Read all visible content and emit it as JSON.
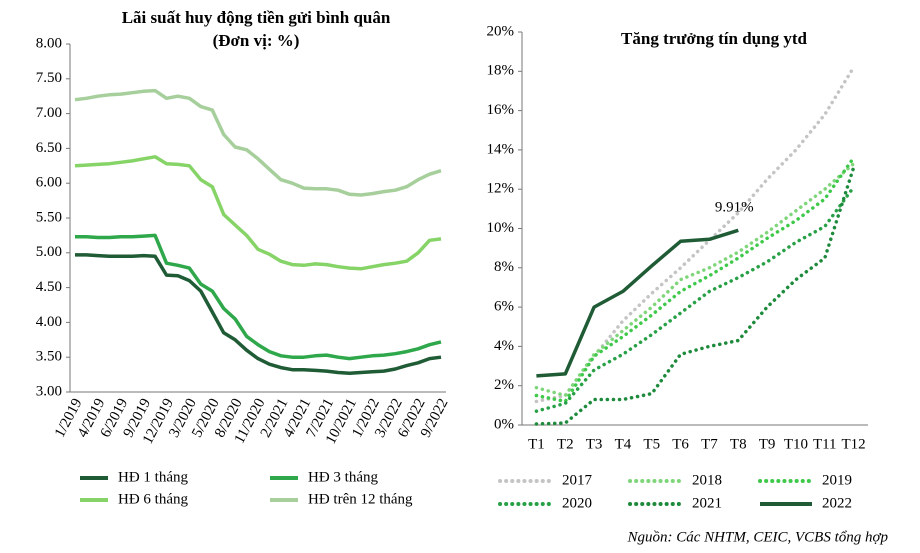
{
  "chart_data": [
    {
      "type": "line",
      "title": "Lãi suất huy động tiền gửi bình quân",
      "subtitle": "(Đơn vị: %)",
      "categories": [
        "1/2019",
        null,
        "4/2019",
        null,
        "6/2019",
        null,
        "9/2019",
        null,
        "12/2019",
        null,
        "3/2020",
        null,
        "5/2020",
        null,
        "8/2020",
        null,
        "11/2020",
        null,
        "2/2021",
        null,
        "4/2021",
        null,
        "7/2021",
        null,
        "10/2021",
        null,
        "1/2022",
        null,
        "3/2022",
        null,
        "6/2022",
        null,
        "9/2022"
      ],
      "ylim": [
        3,
        8
      ],
      "yticks": [
        {
          "value": 3,
          "label": "3.00"
        },
        {
          "value": 3.5,
          "label": "3.50"
        },
        {
          "value": 4,
          "label": "4.00"
        },
        {
          "value": 4.5,
          "label": "4.50"
        },
        {
          "value": 5,
          "label": "5.00"
        },
        {
          "value": 5.5,
          "label": "5.50"
        },
        {
          "value": 6,
          "label": "6.00"
        },
        {
          "value": 6.5,
          "label": "6.50"
        },
        {
          "value": 7,
          "label": "7.00"
        },
        {
          "value": 7.5,
          "label": "7.50"
        },
        {
          "value": 8,
          "label": "8.00"
        }
      ],
      "legend": "bottom",
      "series": [
        {
          "name": "HĐ 1 tháng",
          "color": "#1f5c36",
          "style": "solid",
          "values": [
            4.97,
            4.97,
            4.96,
            4.95,
            4.95,
            4.95,
            4.96,
            4.95,
            4.68,
            4.67,
            4.6,
            4.45,
            4.15,
            3.85,
            3.75,
            3.6,
            3.48,
            3.4,
            3.35,
            3.32,
            3.32,
            3.31,
            3.3,
            3.28,
            3.27,
            3.28,
            3.29,
            3.3,
            3.33,
            3.38,
            3.42,
            3.48,
            3.5
          ]
        },
        {
          "name": "HĐ 3 tháng",
          "color": "#2ea84a",
          "style": "solid",
          "values": [
            5.23,
            5.23,
            5.22,
            5.22,
            5.23,
            5.23,
            5.24,
            5.25,
            4.85,
            4.82,
            4.78,
            4.55,
            4.45,
            4.2,
            4.05,
            3.8,
            3.68,
            3.58,
            3.52,
            3.5,
            3.5,
            3.52,
            3.53,
            3.5,
            3.48,
            3.5,
            3.52,
            3.53,
            3.55,
            3.58,
            3.62,
            3.68,
            3.72
          ]
        },
        {
          "name": "HĐ 6 tháng",
          "color": "#86d468",
          "style": "solid",
          "values": [
            6.25,
            6.26,
            6.27,
            6.28,
            6.3,
            6.32,
            6.35,
            6.38,
            6.28,
            6.27,
            6.25,
            6.05,
            5.95,
            5.55,
            5.4,
            5.25,
            5.05,
            4.98,
            4.88,
            4.83,
            4.82,
            4.84,
            4.83,
            4.8,
            4.78,
            4.77,
            4.8,
            4.83,
            4.85,
            4.88,
            5.0,
            5.18,
            5.2
          ]
        },
        {
          "name": "HĐ trên 12 tháng",
          "color": "#a6cf9c",
          "style": "solid",
          "values": [
            7.2,
            7.22,
            7.25,
            7.27,
            7.28,
            7.3,
            7.32,
            7.33,
            7.22,
            7.25,
            7.22,
            7.1,
            7.05,
            6.7,
            6.52,
            6.48,
            6.35,
            6.2,
            6.05,
            6.0,
            5.93,
            5.92,
            5.92,
            5.9,
            5.84,
            5.83,
            5.85,
            5.88,
            5.9,
            5.95,
            6.05,
            6.13,
            6.18
          ]
        }
      ]
    },
    {
      "type": "line",
      "title": "Tăng trưởng tín dụng ytd",
      "categories": [
        "T1",
        "T2",
        "T3",
        "T4",
        "T5",
        "T6",
        "T7",
        "T8",
        "T9",
        "T10",
        "T11",
        "T12"
      ],
      "ylim": [
        0,
        20
      ],
      "yticks": [
        {
          "value": 0,
          "label": "0%"
        },
        {
          "value": 2,
          "label": "2%"
        },
        {
          "value": 4,
          "label": "4%"
        },
        {
          "value": 6,
          "label": "6%"
        },
        {
          "value": 8,
          "label": "8%"
        },
        {
          "value": 10,
          "label": "10%"
        },
        {
          "value": 12,
          "label": "12%"
        },
        {
          "value": 14,
          "label": "14%"
        },
        {
          "value": 16,
          "label": "16%"
        },
        {
          "value": 18,
          "label": "18%"
        },
        {
          "value": 20,
          "label": "20%"
        }
      ],
      "legend": "bottom",
      "series": [
        {
          "name": "2017",
          "color": "#c4c4c4",
          "style": "dotted",
          "values": [
            1.2,
            1.5,
            3.5,
            5.3,
            6.7,
            8.0,
            9.4,
            10.8,
            12.5,
            14.0,
            15.8,
            18.2
          ]
        },
        {
          "name": "2018",
          "color": "#7fd67a",
          "style": "dotted",
          "values": [
            1.9,
            1.5,
            3.6,
            4.8,
            6.0,
            7.4,
            8.0,
            8.8,
            9.8,
            10.9,
            12.0,
            13.3
          ]
        },
        {
          "name": "2019",
          "color": "#3fc94a",
          "style": "dotted",
          "values": [
            1.5,
            1.2,
            3.5,
            4.5,
            5.6,
            6.8,
            7.6,
            8.5,
            9.5,
            10.4,
            11.5,
            13.6
          ]
        },
        {
          "name": "2020",
          "color": "#27a046",
          "style": "dotted",
          "values": [
            0.7,
            1.1,
            2.8,
            3.6,
            4.6,
            5.7,
            6.8,
            7.5,
            8.3,
            9.3,
            10.1,
            12.1
          ]
        },
        {
          "name": "2021",
          "color": "#1d8a3c",
          "style": "dotted",
          "values": [
            0.05,
            0.1,
            1.3,
            1.3,
            1.6,
            3.6,
            4.0,
            4.3,
            6.0,
            7.4,
            8.5,
            13.1
          ]
        },
        {
          "name": "2022",
          "color": "#1f5c36",
          "style": "solid",
          "values": [
            2.5,
            2.6,
            6.0,
            6.8,
            8.1,
            9.35,
            9.45,
            9.91,
            null,
            null,
            null,
            null
          ],
          "value_labels": [
            null,
            null,
            null,
            null,
            null,
            null,
            null,
            "9.91%",
            null,
            null,
            null,
            null
          ]
        }
      ]
    }
  ],
  "source": "Nguồn: Các NHTM, CEIC, VCBS tổng hợp"
}
